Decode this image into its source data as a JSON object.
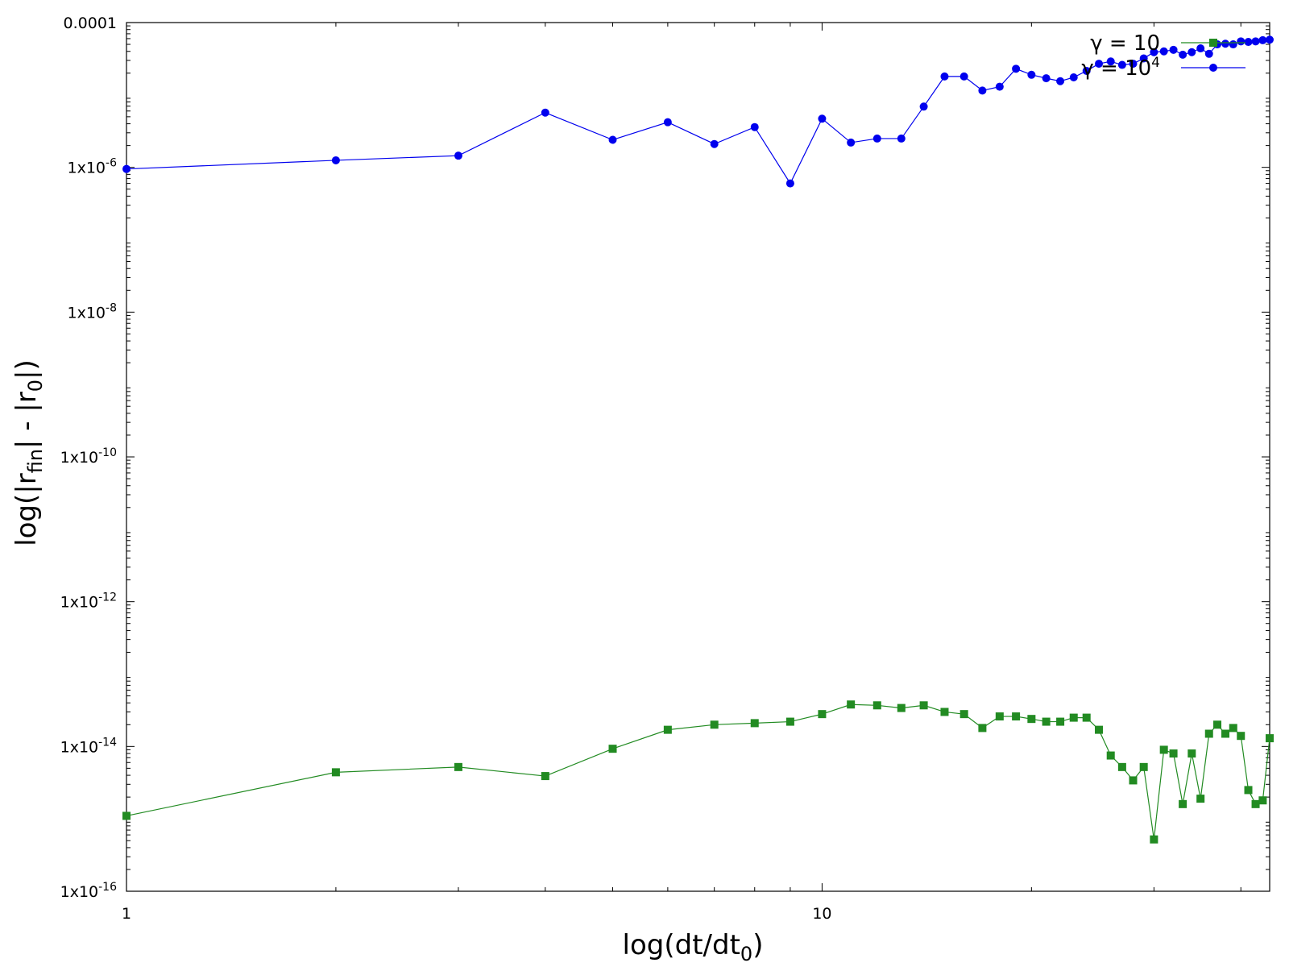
{
  "chart_data": {
    "type": "line",
    "xlabel": {
      "main": "log(dt/dt",
      "sub": "0",
      "end": ")"
    },
    "ylabel": {
      "pre": "log(|r",
      "sub1": "fin",
      "mid": "| - |r",
      "sub2": "0",
      "end": "|)"
    },
    "x_scale": "log",
    "y_scale": "log",
    "xlim": [
      1,
      44
    ],
    "ylim": [
      1e-16,
      0.0001
    ],
    "x_ticks": [
      {
        "value": 1,
        "label": "1"
      },
      {
        "value": 10,
        "label": "10"
      }
    ],
    "y_ticks": [
      {
        "value": 1e-16,
        "base": "1x10",
        "exp": "-16"
      },
      {
        "value": 1e-14,
        "base": "1x10",
        "exp": "-14"
      },
      {
        "value": 1e-12,
        "base": "1x10",
        "exp": "-12"
      },
      {
        "value": 1e-10,
        "base": "1x10",
        "exp": "-10"
      },
      {
        "value": 1e-08,
        "base": "1x10",
        "exp": "-8"
      },
      {
        "value": 1e-06,
        "base": "1x10",
        "exp": "-6"
      },
      {
        "value": 0.0001,
        "base": "0.0001",
        "exp": ""
      }
    ],
    "grid": false,
    "legend_position": "top-right",
    "series": [
      {
        "name": "γ = 10",
        "legend_base": "γ = 10",
        "legend_sup": "",
        "color": "#228b22",
        "marker": "square",
        "x": [
          1,
          2,
          3,
          4,
          5,
          6,
          7,
          8,
          9,
          10,
          11,
          12,
          13,
          14,
          15,
          16,
          17,
          18,
          19,
          20,
          21,
          22,
          23,
          24,
          25,
          26,
          27,
          28,
          29,
          30,
          31,
          32,
          33,
          34,
          35,
          36,
          37,
          38,
          39,
          40,
          41,
          42,
          43,
          44
        ],
        "y": [
          1.1e-15,
          4.4e-15,
          5.2e-15,
          3.9e-15,
          9.3e-15,
          1.7e-14,
          2e-14,
          2.1e-14,
          2.2e-14,
          2.8e-14,
          3.8e-14,
          3.7e-14,
          3.4e-14,
          3.7e-14,
          3e-14,
          2.8e-14,
          1.8e-14,
          2.6e-14,
          2.6e-14,
          2.4e-14,
          2.2e-14,
          2.2e-14,
          2.5e-14,
          2.5e-14,
          1.7e-14,
          7.5e-15,
          5.2e-15,
          3.4e-15,
          5.2e-15,
          5.2e-16,
          9e-15,
          8e-15,
          1.6e-15,
          8e-15,
          1.9e-15,
          1.5e-14,
          2e-14,
          1.5e-14,
          1.8e-14,
          1.4e-14,
          2.5e-15,
          1.6e-15,
          1.8e-15,
          1.3e-14
        ]
      },
      {
        "name": "γ = 10⁴",
        "legend_base": "γ = 10",
        "legend_sup": "4",
        "color": "#0000ee",
        "marker": "circle",
        "x": [
          1,
          2,
          3,
          4,
          5,
          6,
          7,
          8,
          9,
          10,
          11,
          12,
          13,
          14,
          15,
          16,
          17,
          18,
          19,
          20,
          21,
          22,
          23,
          24,
          25,
          26,
          27,
          28,
          29,
          30,
          31,
          32,
          33,
          34,
          35,
          36,
          37,
          38,
          39,
          40,
          41,
          42,
          43,
          44
        ],
        "y": [
          9.5e-07,
          1.25e-06,
          1.45e-06,
          5.7e-06,
          2.4e-06,
          4.2e-06,
          2.1e-06,
          3.6e-06,
          6e-07,
          4.7e-06,
          2.2e-06,
          2.5e-06,
          2.5e-06,
          6.9e-06,
          1.8e-05,
          1.8e-05,
          1.15e-05,
          1.3e-05,
          2.3e-05,
          1.9e-05,
          1.7e-05,
          1.55e-05,
          1.75e-05,
          2.15e-05,
          2.7e-05,
          2.9e-05,
          2.6e-05,
          2.7e-05,
          3.2e-05,
          3.9e-05,
          4e-05,
          4.2e-05,
          3.6e-05,
          3.9e-05,
          4.4e-05,
          3.7e-05,
          5e-05,
          5.1e-05,
          5e-05,
          5.5e-05,
          5.4e-05,
          5.5e-05,
          5.7e-05,
          5.8e-05
        ]
      }
    ]
  }
}
